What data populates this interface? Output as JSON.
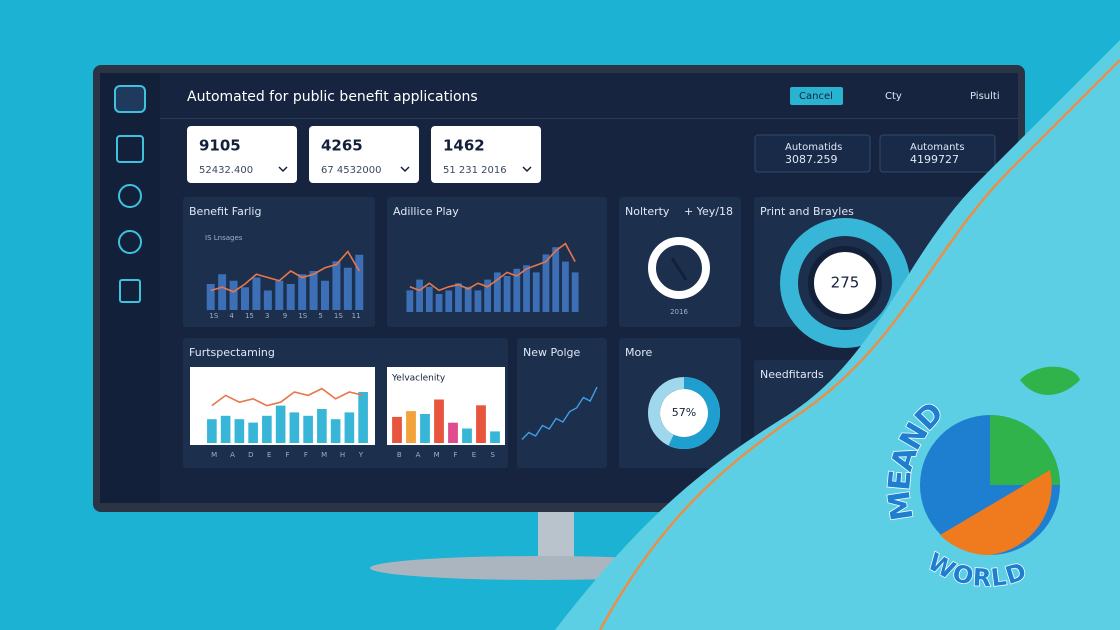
{
  "header": {
    "title": "Automated for public benefit applications",
    "buttons": [
      "Cancel",
      "Cty",
      "Pisulti"
    ]
  },
  "stat_cards": [
    {
      "value": "9105",
      "sub": "52432.400"
    },
    {
      "value": "4265",
      "sub": "67 4532000"
    },
    {
      "value": "1462",
      "sub": "51 231 2016"
    }
  ],
  "summary": [
    {
      "label": "Automatids",
      "value": "3087.259"
    },
    {
      "label": "Automants",
      "value": "4199727"
    }
  ],
  "panels": {
    "benefit": {
      "title": "Benefit Farlig",
      "subtitle": "IS Lnsages",
      "x_labels": [
        "1S",
        "4",
        "15",
        "3",
        "9",
        "1S",
        "5",
        "1S",
        "11"
      ],
      "ylim": [
        0,
        100
      ],
      "bars": [
        40,
        55,
        45,
        35,
        50,
        30,
        45,
        40,
        55,
        60,
        45,
        75,
        65,
        85
      ],
      "line": [
        30,
        35,
        28,
        40,
        55,
        50,
        45,
        60,
        50,
        55,
        65,
        70,
        90,
        60
      ]
    },
    "play": {
      "title": "Adillice Play",
      "ylim": [
        0,
        100
      ],
      "bars": [
        30,
        45,
        35,
        25,
        30,
        40,
        35,
        30,
        45,
        55,
        50,
        60,
        65,
        55,
        80,
        90,
        70,
        55
      ],
      "line": [
        35,
        30,
        40,
        30,
        35,
        38,
        32,
        40,
        35,
        45,
        55,
        50,
        60,
        65,
        70,
        85,
        95,
        70
      ]
    },
    "nolterty": {
      "title": "Nolterty",
      "tag": "+ Yey/18",
      "caption": "2016"
    },
    "print": {
      "title": "Print and Brayles",
      "value": "275"
    },
    "furt": {
      "title": "Furtspectaming",
      "x_labels": [
        "M",
        "A",
        "D",
        "E",
        "F",
        "F",
        "M",
        "H",
        "Y"
      ],
      "ylim": [
        0,
        100
      ],
      "bars": [
        35,
        40,
        35,
        30,
        40,
        55,
        45,
        40,
        50,
        35,
        45,
        75
      ],
      "line": [
        55,
        70,
        60,
        65,
        55,
        60,
        75,
        70,
        80,
        65,
        75,
        70
      ]
    },
    "yelva": {
      "title": "Yelvaclenity",
      "x_labels": [
        "B",
        "A",
        "M",
        "F",
        "E",
        "S"
      ],
      "ylim": [
        0,
        100
      ],
      "bars": [
        45,
        55,
        50,
        75,
        35,
        25,
        65,
        20
      ],
      "colors": [
        "#e8553f",
        "#f2a33a",
        "#38b6d8",
        "#e8553f",
        "#e04b8f",
        "#38b6d8",
        "#e8553f",
        "#38b6d8"
      ]
    },
    "polge": {
      "title": "New Polge",
      "ylim": [
        0,
        100
      ],
      "line": [
        15,
        25,
        20,
        35,
        30,
        45,
        40,
        55,
        60,
        75,
        70,
        90
      ]
    },
    "more": {
      "title": "More",
      "value": 57,
      "value_label": "57%"
    },
    "needfitards": {
      "title": "Needfitards"
    }
  },
  "logo": {
    "top": "MEAND",
    "bottom": "WORLD"
  }
}
